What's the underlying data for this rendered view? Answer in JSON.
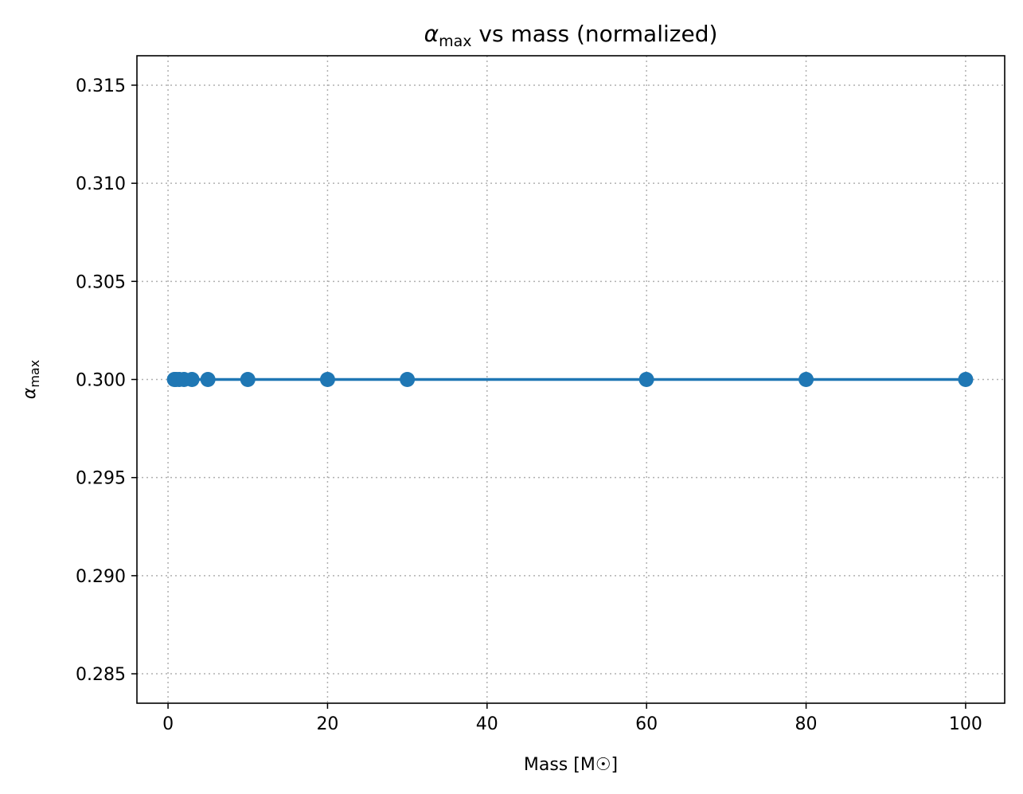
{
  "chart_data": {
    "type": "line",
    "title": {
      "symbol": "α",
      "subscript": "max",
      "rest": " vs mass (normalized)"
    },
    "xlabel": "Mass [M☉]",
    "ylabel": {
      "symbol": "α",
      "subscript": "max"
    },
    "xlim": [
      -3.9,
      104.9
    ],
    "ylim": [
      0.2835,
      0.3165
    ],
    "xticks": [
      0,
      20,
      40,
      60,
      80,
      100
    ],
    "xtick_labels": [
      "0",
      "20",
      "40",
      "60",
      "80",
      "100"
    ],
    "yticks": [
      0.285,
      0.29,
      0.295,
      0.3,
      0.305,
      0.31,
      0.315
    ],
    "ytick_labels": [
      "0.285",
      "0.290",
      "0.295",
      "0.300",
      "0.305",
      "0.310",
      "0.315"
    ],
    "grid": true,
    "series": [
      {
        "color": "#1f77b4",
        "marker": "circle",
        "x": [
          0.8,
          1,
          1.4,
          2,
          3,
          5,
          10,
          20,
          30,
          60,
          80,
          100
        ],
        "y": [
          0.3,
          0.3,
          0.3,
          0.3,
          0.3,
          0.3,
          0.3,
          0.3,
          0.3,
          0.3,
          0.3,
          0.3
        ]
      }
    ]
  }
}
